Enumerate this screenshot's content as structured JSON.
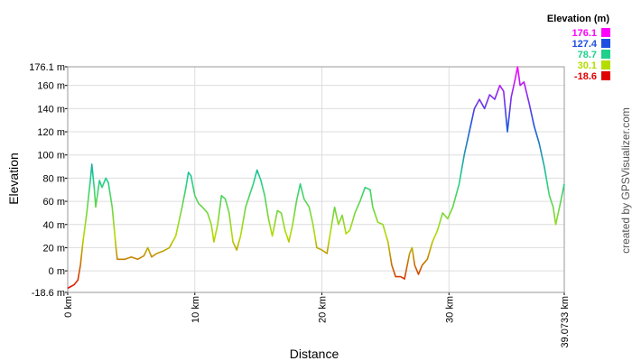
{
  "chart_data": {
    "type": "line",
    "xlabel": "Distance",
    "ylabel": "Elevation",
    "credit": "created by GPSVisualizer.com",
    "legend_title": "Elevation (m)",
    "color_scale": [
      {
        "value": 176.1,
        "color": "#ff00ff"
      },
      {
        "value": 127.4,
        "color": "#1f4fe0"
      },
      {
        "value": 78.7,
        "color": "#1ed08c"
      },
      {
        "value": 30.1,
        "color": "#b4dc00"
      },
      {
        "value": -18.6,
        "color": "#e00000"
      }
    ],
    "xlim": [
      0,
      39.0733
    ],
    "ylim": [
      -18.6,
      176.1
    ],
    "xticks": [
      {
        "value": 0,
        "label": "0 km"
      },
      {
        "value": 10,
        "label": "10 km"
      },
      {
        "value": 20,
        "label": "20 km"
      },
      {
        "value": 30,
        "label": "30 km"
      },
      {
        "value": 39.0733,
        "label": "39.0733 km"
      }
    ],
    "yticks": [
      {
        "value": -18.6,
        "label": "-18.6 m"
      },
      {
        "value": 0,
        "label": "0 m"
      },
      {
        "value": 20,
        "label": "20 m"
      },
      {
        "value": 40,
        "label": "40 m"
      },
      {
        "value": 60,
        "label": "60 m"
      },
      {
        "value": 80,
        "label": "80 m"
      },
      {
        "value": 100,
        "label": "100 m"
      },
      {
        "value": 120,
        "label": "120 m"
      },
      {
        "value": 140,
        "label": "140 m"
      },
      {
        "value": 160,
        "label": "160 m"
      },
      {
        "value": 176.1,
        "label": "176.1 m"
      }
    ],
    "grid": true,
    "x": [
      0,
      0.5,
      0.8,
      1.0,
      1.2,
      1.5,
      1.8,
      1.9,
      2.1,
      2.2,
      2.5,
      2.7,
      3.0,
      3.2,
      3.5,
      3.8,
      3.9,
      4.5,
      5.0,
      5.5,
      6.0,
      6.3,
      6.6,
      7.0,
      7.5,
      8.0,
      8.5,
      9.0,
      9.3,
      9.5,
      9.7,
      10.0,
      10.3,
      10.6,
      11.0,
      11.3,
      11.5,
      11.8,
      12.1,
      12.4,
      12.7,
      13.0,
      13.3,
      13.6,
      14.0,
      14.3,
      14.6,
      14.9,
      15.2,
      15.5,
      15.8,
      16.1,
      16.5,
      16.8,
      17.1,
      17.4,
      17.7,
      18.0,
      18.3,
      18.6,
      19.0,
      19.3,
      19.6,
      20.0,
      20.4,
      20.7,
      21.0,
      21.3,
      21.6,
      21.9,
      22.2,
      22.6,
      23.0,
      23.4,
      23.8,
      24.0,
      24.4,
      24.8,
      25.2,
      25.5,
      25.8,
      26.2,
      26.5,
      26.9,
      27.1,
      27.3,
      27.6,
      27.9,
      28.3,
      28.7,
      29.1,
      29.5,
      29.9,
      30.3,
      30.8,
      31.2,
      31.6,
      32.0,
      32.4,
      32.8,
      33.2,
      33.6,
      34.0,
      34.3,
      34.6,
      34.9,
      35.2,
      35.4,
      35.6,
      35.9,
      36.3,
      36.7,
      37.1,
      37.5,
      37.9,
      38.2,
      38.4,
      38.7,
      39.0733
    ],
    "values": [
      -15,
      -12,
      -8,
      5,
      25,
      50,
      80,
      92,
      70,
      55,
      78,
      72,
      80,
      76,
      55,
      20,
      10,
      10,
      12,
      10,
      13,
      20,
      12,
      15,
      17,
      20,
      30,
      55,
      72,
      85,
      82,
      65,
      58,
      55,
      50,
      40,
      25,
      40,
      65,
      62,
      50,
      25,
      18,
      30,
      55,
      65,
      75,
      87,
      78,
      65,
      45,
      30,
      52,
      50,
      35,
      25,
      40,
      60,
      75,
      62,
      55,
      40,
      20,
      18,
      15,
      35,
      55,
      40,
      48,
      32,
      35,
      50,
      60,
      72,
      70,
      55,
      42,
      40,
      25,
      5,
      -5,
      -5,
      -7,
      15,
      20,
      5,
      -3,
      5,
      10,
      25,
      35,
      50,
      45,
      55,
      75,
      100,
      120,
      140,
      148,
      140,
      152,
      148,
      160,
      155,
      120,
      150,
      165,
      176.1,
      160,
      163,
      145,
      125,
      110,
      90,
      65,
      55,
      40,
      55,
      75
    ]
  }
}
